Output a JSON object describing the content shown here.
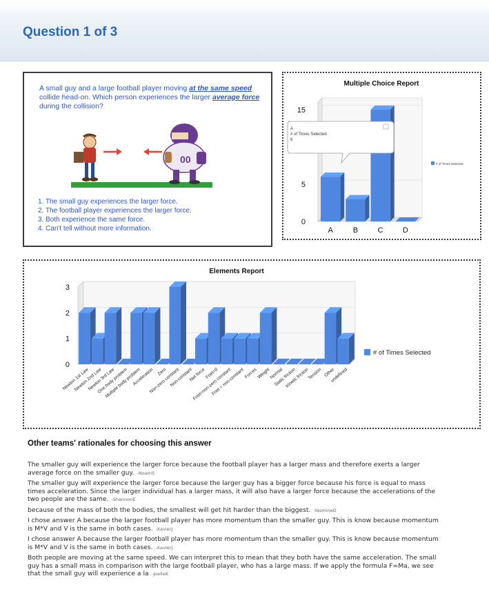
{
  "header": {
    "title": "Question 1 of 3"
  },
  "question": {
    "text_pre": "A small guy and a large football player moving ",
    "text_em1": "at the same speed",
    "text_mid": " collide head-on.  Which person experiences the larger ",
    "text_em2": "average force",
    "text_post": " during the collision?",
    "options": [
      "1.  The small guy experiences the larger force.",
      "2.  The football player experiences the larger force.",
      "3.  Both experience the same force.",
      "4.  Can't tell without more information."
    ],
    "jersey_number": "00"
  },
  "mc_report": {
    "chart_data": {
      "type": "bar",
      "title": "Multiple Choice Report",
      "categories": [
        "A",
        "B",
        "C",
        "D"
      ],
      "values": [
        6,
        3,
        15,
        0
      ],
      "yticks": [
        0,
        5,
        15
      ],
      "ylim": [
        0,
        16
      ],
      "legend": "# of Times Selected",
      "legend_position": "right",
      "tooltip": {
        "line1": "A",
        "line2": "# of Times Selected",
        "line3": "6"
      },
      "bar_color": "#4f86df"
    }
  },
  "elements_report": {
    "chart_data": {
      "type": "bar",
      "title": "Elements Report",
      "categories": [
        "Newton 1st Law",
        "Newton 2nd Law",
        "Newton 3rd Law",
        "One body problem",
        "Multiple body problem",
        "Acceleration",
        "Zero",
        "Non-zero constant",
        "Non-constant",
        "Net force",
        "Fnet=0",
        "Fnet=non-zero constant",
        "Fnet = non-constant",
        "Forces",
        "Weight",
        "Normal",
        "Static friction",
        "Kinetic friction",
        "Tension",
        "Other",
        "undefined"
      ],
      "values": [
        2,
        1,
        2,
        0,
        2,
        2,
        0,
        3,
        0,
        1,
        2,
        1,
        1,
        1,
        2,
        0,
        0,
        0,
        0,
        2,
        1
      ],
      "yticks": [
        0,
        1,
        2,
        3
      ],
      "ylim": [
        0,
        3
      ],
      "legend": "# of Times Selected",
      "legend_position": "right",
      "bar_color": "#4f86df"
    }
  },
  "rationales": {
    "title": "Other teams' rationales for choosing this answer",
    "items": [
      {
        "text": "The smaller guy will experience the larger force because the football player has a larger mass and therefore exerts a larger average force on the smaller guy.",
        "author": "-NoamS"
      },
      {
        "text": "The smaller guy will experience the larger force because the larger guy has a bigger force because his force is equal to mass times acceleration. Since the larger individual has a larger mass, it will also have a larger force because the accelerations of the two people are the same.",
        "author": "-ShannonE"
      },
      {
        "text": "because of the mass of both the bodies, the smallest will get hit harder than the biggest.",
        "author": "-YasmineD"
      },
      {
        "text": "I chose answer A because the larger football player has more momentum than the smaller guy. This is know because momentum is M*V and V is the same in both cases.",
        "author": "-XavierJ"
      },
      {
        "text": "I chose answer A because the larger football player has more momentum than the smaller guy. This is know because momentum is M*V and V is the same in both cases.",
        "author": "-XavierJ"
      },
      {
        "text": "Both people are moving at the same speed. We can interpret this to mean that they both have the same acceleration. The small guy has a small mass in comparison with the large football player, who has a large mass. If we apply the formula F=Ma, we see that the small guy will experience a la",
        "author": "-JoelleK"
      }
    ]
  }
}
